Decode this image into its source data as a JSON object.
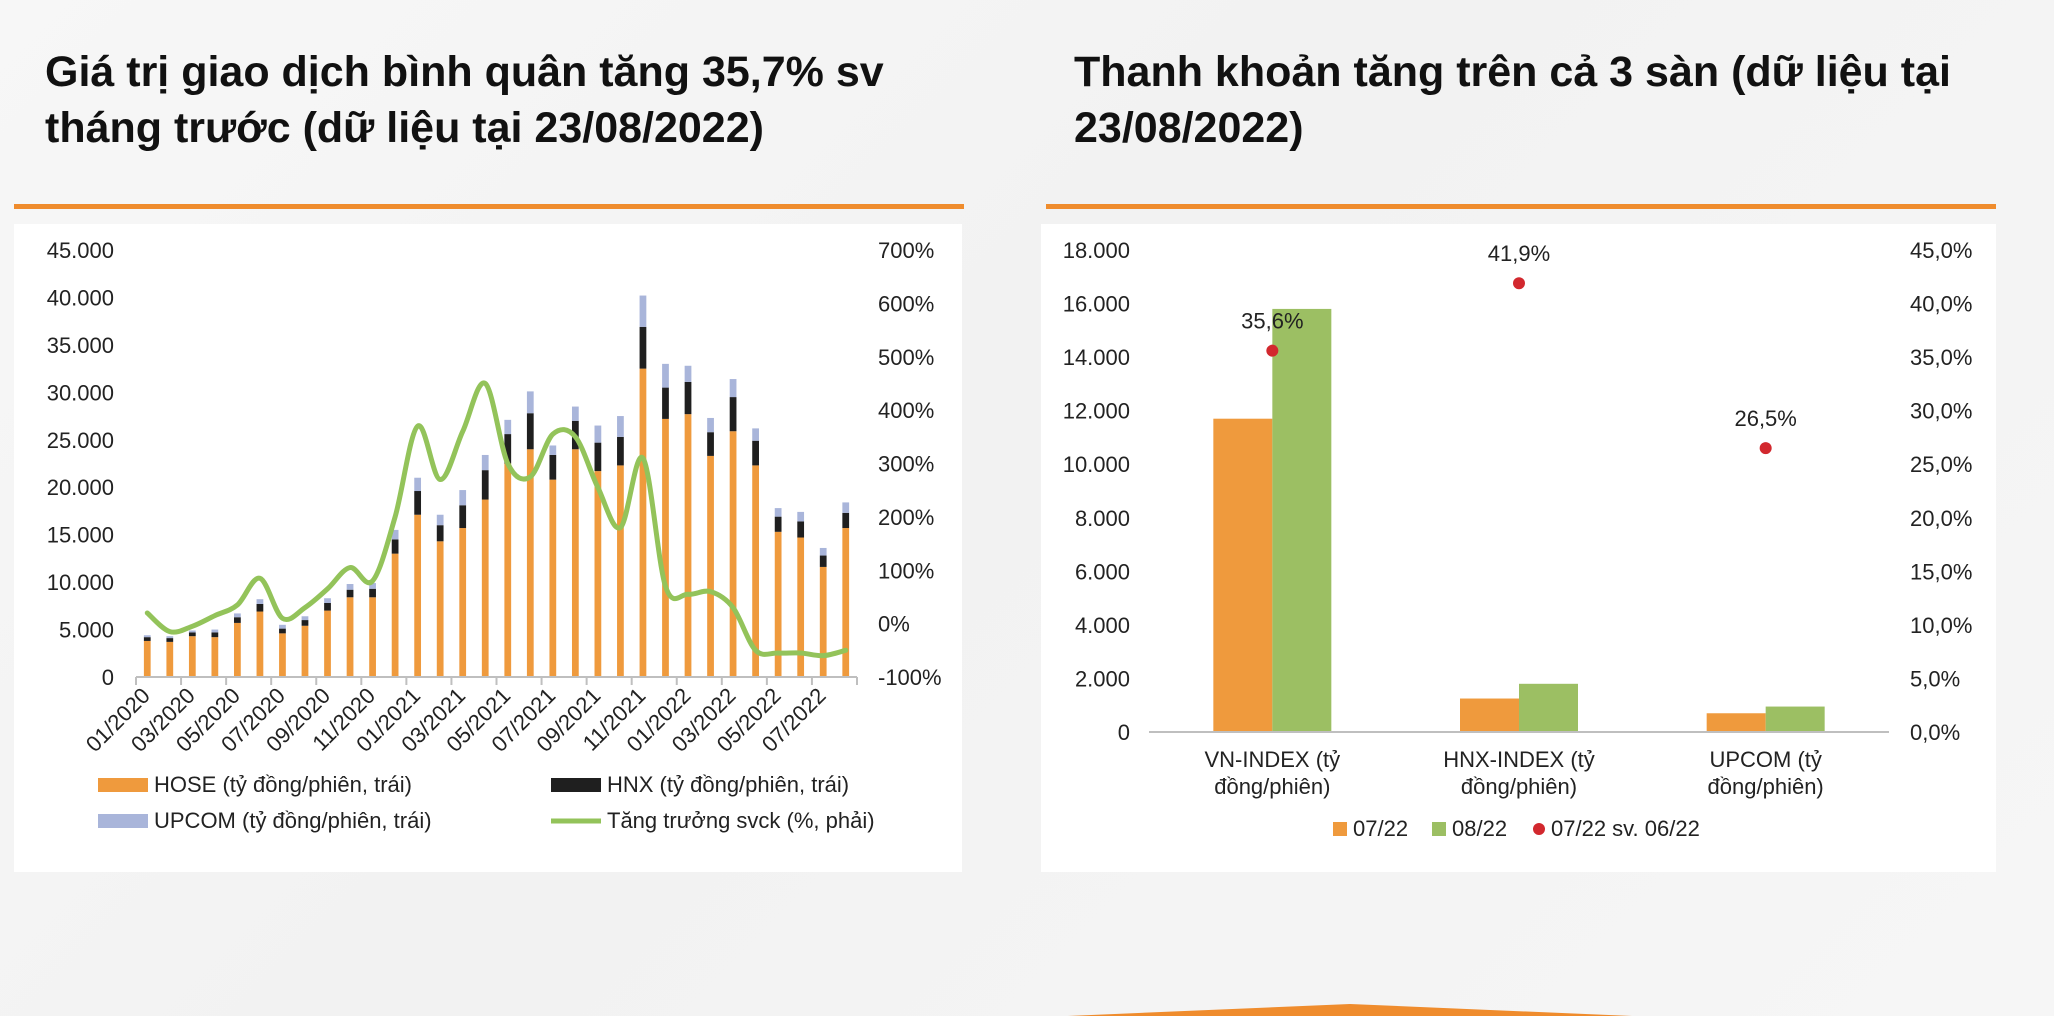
{
  "titles": {
    "left": "Giá trị giao dịch bình quân tăng 35,7% sv tháng trước (dữ liệu tại 23/08/2022)",
    "right": "Thanh khoản tăng trên cả 3 sàn (dữ liệu tại 23/08/2022)"
  },
  "chart_data": [
    {
      "type": "bar",
      "subtype": "stacked-bar-with-line",
      "title": "Giá trị giao dịch bình quân tăng 35,7% sv tháng trước (dữ liệu tại 23/08/2022)",
      "categories": [
        "01/2020",
        "02/2020",
        "03/2020",
        "04/2020",
        "05/2020",
        "06/2020",
        "07/2020",
        "08/2020",
        "09/2020",
        "10/2020",
        "11/2020",
        "12/2020",
        "01/2021",
        "02/2021",
        "03/2021",
        "04/2021",
        "05/2021",
        "06/2021",
        "07/2021",
        "08/2021",
        "09/2021",
        "10/2021",
        "11/2021",
        "12/2021",
        "01/2022",
        "02/2022",
        "03/2022",
        "04/2022",
        "05/2022",
        "06/2022",
        "07/2022",
        "08/2022"
      ],
      "x_tick_labels": [
        "01/2020",
        "03/2020",
        "05/2020",
        "07/2020",
        "09/2020",
        "11/2020",
        "01/2021",
        "03/2021",
        "05/2021",
        "07/2021",
        "09/2021",
        "11/2021",
        "01/2022",
        "03/2022",
        "05/2022",
        "07/2022"
      ],
      "series": [
        {
          "name": "HOSE (tỷ đồng/phiên, trái)",
          "axis": "left",
          "color": "#ef9a3d",
          "values": [
            3800,
            3700,
            4300,
            4200,
            5700,
            6900,
            4600,
            5400,
            7000,
            8400,
            8400,
            13000,
            17100,
            14300,
            15700,
            18700,
            22500,
            24000,
            20800,
            24000,
            21700,
            22300,
            32500,
            27200,
            27700,
            23300,
            25900,
            22300,
            15300,
            14700,
            11600,
            15700
          ]
        },
        {
          "name": "HNX (tỷ đồng/phiên, trái)",
          "axis": "left",
          "color": "#1f1f1f",
          "values": [
            400,
            400,
            400,
            500,
            600,
            800,
            500,
            600,
            800,
            800,
            900,
            1500,
            2500,
            1700,
            2400,
            3100,
            3100,
            3800,
            2600,
            3000,
            3000,
            3000,
            4400,
            3300,
            3400,
            2500,
            3600,
            2600,
            1600,
            1700,
            1200,
            1600
          ]
        },
        {
          "name": "UPCOM (tỷ đồng/phiên, trái)",
          "axis": "left",
          "color": "#a9b5da",
          "values": [
            200,
            200,
            200,
            300,
            400,
            500,
            400,
            400,
            500,
            600,
            600,
            1000,
            1400,
            1100,
            1600,
            1600,
            1500,
            2300,
            1000,
            1500,
            1800,
            2200,
            3300,
            2500,
            1700,
            1500,
            1900,
            1300,
            900,
            1000,
            800,
            1100
          ]
        },
        {
          "name": "Tăng trưởng svck (%, phải)",
          "axis": "right",
          "color": "#93c35a",
          "type": "line",
          "values": [
            20,
            -15,
            -5,
            15,
            35,
            85,
            10,
            30,
            65,
            105,
            80,
            200,
            370,
            270,
            360,
            450,
            300,
            275,
            355,
            350,
            255,
            180,
            310,
            70,
            55,
            60,
            30,
            -50,
            -55,
            -55,
            -60,
            -50
          ]
        }
      ],
      "yleft_ticks": [
        "45.000",
        "40.000",
        "35.000",
        "30.000",
        "25.000",
        "20.000",
        "15.000",
        "10.000",
        "5.000",
        "0"
      ],
      "yright_ticks": [
        "700%",
        "600%",
        "500%",
        "400%",
        "300%",
        "200%",
        "100%",
        "0%",
        "-100%"
      ],
      "ylim_left": [
        0,
        45000
      ],
      "ylim_right": [
        -100,
        700
      ],
      "legend": [
        "HOSE (tỷ đồng/phiên, trái)",
        "HNX (tỷ đồng/phiên, trái)",
        "UPCOM (tỷ đồng/phiên, trái)",
        "Tăng trưởng svck (%, phải)"
      ],
      "legend_position": "bottom"
    },
    {
      "type": "bar",
      "subtype": "grouped-bar-with-scatter",
      "title": "Thanh khoản tăng trên cả 3 sàn (dữ liệu tại 23/08/2022)",
      "categories": [
        {
          "line1": "VN-INDEX (tỷ",
          "line2": "đồng/phiên)"
        },
        {
          "line1": "HNX-INDEX (tỷ",
          "line2": "đồng/phiên)"
        },
        {
          "line1": "UPCOM (tỷ",
          "line2": "đồng/phiên)"
        }
      ],
      "series": [
        {
          "name": "07/22",
          "axis": "left",
          "color": "#ef9a3d",
          "values": [
            11700,
            1250,
            700
          ]
        },
        {
          "name": "08/22",
          "axis": "left",
          "color": "#9cbf63",
          "values": [
            15800,
            1800,
            950
          ]
        },
        {
          "name": "07/22 sv. 06/22",
          "axis": "right",
          "color": "#d2282e",
          "type": "scatter",
          "values": [
            35.6,
            41.9,
            26.5
          ],
          "labels": [
            "35,6%",
            "41,9%",
            "26,5%"
          ]
        }
      ],
      "yleft_ticks": [
        "18.000",
        "16.000",
        "14.000",
        "12.000",
        "10.000",
        "8.000",
        "6.000",
        "4.000",
        "2.000",
        "0"
      ],
      "yright_ticks": [
        "45,0%",
        "40,0%",
        "35,0%",
        "30,0%",
        "25,0%",
        "20,0%",
        "15,0%",
        "10,0%",
        "5,0%",
        "0,0%"
      ],
      "ylim_left": [
        0,
        18000
      ],
      "ylim_right": [
        0,
        45
      ],
      "legend": [
        "07/22",
        "08/22",
        "07/22 sv. 06/22"
      ],
      "legend_position": "bottom"
    }
  ]
}
